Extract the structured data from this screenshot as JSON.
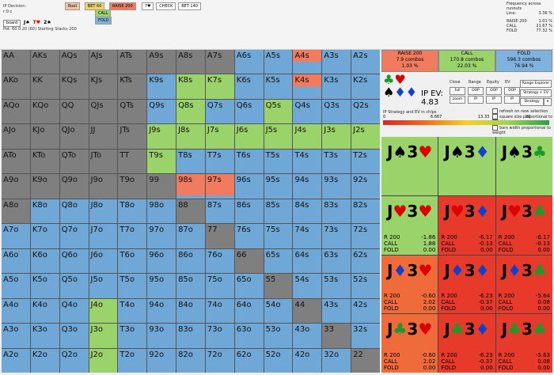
{
  "header": {
    "ip_decision_label": "IP Decision:",
    "ip_decision_value": "r:0:c",
    "board_label": "board",
    "board_cards": [
      {
        "rank": "J",
        "suit": "♠",
        "color": "#000"
      },
      {
        "rank": "T",
        "suit": "♥",
        "color": "#d00"
      },
      {
        "rank": "2",
        "suit": "♠",
        "color": "#000"
      }
    ],
    "pot_text": "Pot: 60 0.20 (60) Starting Stacks 200",
    "actions": [
      {
        "label": "Root",
        "color": "#f2c6a0"
      },
      {
        "label": "BET 60",
        "color": "#f1d36b"
      },
      {
        "label": "RAISE 200",
        "color": "#f07b5e"
      },
      {
        "label": "7♥",
        "color": "#ffffff"
      },
      {
        "label": "CHECK",
        "color": "#ffffff"
      },
      {
        "label": "BET 140",
        "color": "#ffffff"
      }
    ],
    "sub_actions": [
      {
        "label": "CALL",
        "color": "#9ad36a"
      },
      {
        "label": "FOLD",
        "color": "#7fb3de"
      }
    ]
  },
  "frequency": {
    "title": "Frequency across runouts",
    "line_label": "Line:",
    "line_value": "3.36 %",
    "rows": [
      {
        "label": "RAISE 200",
        "value": "1.01 %"
      },
      {
        "label": "CALL",
        "value": "21.67 %"
      },
      {
        "label": "FOLD",
        "value": "77.32 %"
      }
    ]
  },
  "ranks": [
    "A",
    "K",
    "Q",
    "J",
    "T",
    "9",
    "8",
    "7",
    "6",
    "5",
    "4",
    "3",
    "2"
  ],
  "right": {
    "action_boxes": [
      {
        "label": "RAISE 200",
        "combos": "7.9 combos",
        "pct": "1.03 %",
        "color": "#f07b5e"
      },
      {
        "label": "CALL",
        "combos": "170.8 combos",
        "pct": "22.03 %",
        "color": "#9ad36a"
      },
      {
        "label": "FOLD",
        "combos": "596.3 combos",
        "pct": "76.94 %",
        "color": "#7fb3de"
      }
    ],
    "ev_label": "IP EV:",
    "ev_value": "4.83",
    "close_label": "Close",
    "range_label": "Range",
    "equity_label": "Equity",
    "ev_short": "EV",
    "range_explorer": "Range Explorer",
    "buttons_row1": [
      "full",
      "OOP",
      "OOP",
      "OOP"
    ],
    "buttons_row2": [
      "zoom",
      "IP",
      "IP",
      "IP"
    ],
    "strategy_ev": "Strategy + EV",
    "strategy": "Strategy",
    "scale_title": "IP Strategy and EV in chips",
    "scale_ticks": [
      "0",
      "6.667",
      "13.33",
      "20"
    ],
    "checkboxes": [
      "refresh on new selection",
      "square size proportional to weight",
      "normalize squares",
      "bars width proportional to weight"
    ],
    "combos": [
      {
        "r1": "J",
        "s1": "♠",
        "c1": "#000",
        "r2": "3",
        "s2": "♥",
        "c2": "#d00",
        "bg": "#9ad36a",
        "stats": null
      },
      {
        "r1": "J",
        "s1": "♠",
        "c1": "#000",
        "r2": "3",
        "s2": "♦",
        "c2": "#1040d0",
        "bg": "#9ad36a",
        "stats": null
      },
      {
        "r1": "J",
        "s1": "♠",
        "c1": "#000",
        "r2": "3",
        "s2": "♣",
        "c2": "#1a9a2a",
        "bg": "#9ad36a",
        "stats": null
      },
      {
        "r1": "J",
        "s1": "♥",
        "c1": "#d00",
        "r2": "3",
        "s2": "♥",
        "c2": "#d00",
        "bg": "#9ad36a",
        "stats": [
          [
            "R 200",
            "-1.86"
          ],
          [
            "CALL",
            "1.88"
          ],
          [
            "FOLD",
            "0.00"
          ]
        ]
      },
      {
        "r1": "J",
        "s1": "♥",
        "c1": "#d00",
        "r2": "3",
        "s2": "♦",
        "c2": "#1040d0",
        "bg": "#e83a2a",
        "stats": [
          [
            "R 200",
            "-6.17"
          ],
          [
            "CALL",
            "-0.13"
          ],
          [
            "FOLD",
            "0.00"
          ]
        ]
      },
      {
        "r1": "J",
        "s1": "♥",
        "c1": "#d00",
        "r2": "3",
        "s2": "♣",
        "c2": "#1a9a2a",
        "bg": "#e83a2a",
        "stats": [
          [
            "R 200",
            "-6.17"
          ],
          [
            "CALL",
            "-0.13"
          ],
          [
            "FOLD",
            "0.00"
          ]
        ]
      },
      {
        "r1": "J",
        "s1": "♦",
        "c1": "#1040d0",
        "r2": "3",
        "s2": "♥",
        "c2": "#d00",
        "bg": "#f06b3a",
        "stats": [
          [
            "R 200",
            "-0.60"
          ],
          [
            "CALL",
            "2.02"
          ],
          [
            "FOLD",
            "0.00"
          ]
        ]
      },
      {
        "r1": "J",
        "s1": "♦",
        "c1": "#1040d0",
        "r2": "3",
        "s2": "♦",
        "c2": "#1040d0",
        "bg": "#e83a2a",
        "stats": [
          [
            "R 200",
            "-6.23"
          ],
          [
            "CALL",
            "-0.37"
          ],
          [
            "FOLD",
            "0.00"
          ]
        ]
      },
      {
        "r1": "J",
        "s1": "♦",
        "c1": "#1040d0",
        "r2": "3",
        "s2": "♣",
        "c2": "#1a9a2a",
        "bg": "#e83a2a",
        "stats": [
          [
            "R 200",
            "-5.64"
          ],
          [
            "CALL",
            "0.08"
          ],
          [
            "FOLD",
            "0.00"
          ]
        ]
      }
    ],
    "combos_bottom": [
      {
        "r1": "J",
        "s1": "♣",
        "c1": "#1a9a2a",
        "r2": "3",
        "s2": "♥",
        "c2": "#d00",
        "bg": "#f06b3a",
        "stats": [
          [
            "R 200",
            "-0.60"
          ],
          [
            "CALL",
            "2.02"
          ],
          [
            "FOLD",
            "0.00"
          ]
        ]
      },
      {
        "r1": "J",
        "s1": "♣",
        "c1": "#1a9a2a",
        "r2": "3",
        "s2": "♦",
        "c2": "#1040d0",
        "bg": "#e83a2a",
        "stats": [
          [
            "R 200",
            "-6.23"
          ],
          [
            "CALL",
            "-0.37"
          ],
          [
            "FOLD",
            "0.00"
          ]
        ]
      },
      {
        "r1": "J",
        "s1": "♣",
        "c1": "#1a9a2a",
        "r2": "3",
        "s2": "♣",
        "c2": "#1a9a2a",
        "bg": "#e83a2a",
        "stats": [
          [
            "R 200",
            "-5.63"
          ],
          [
            "CALL",
            "0.08"
          ],
          [
            "FOLD",
            "0.00"
          ]
        ]
      }
    ]
  },
  "colors": {
    "raise": "#f07b5e",
    "call": "#9ad36a",
    "fold": "#6fa8d6",
    "gray": "#7f7f7f"
  },
  "cells": {
    "AA": "gray",
    "AKs": "gray",
    "AQs": "gray",
    "AJs": "gray",
    "ATs": "gray",
    "A9s": "gray",
    "A8s": "gray",
    "A7s": "gray",
    "A6s": "fold",
    "A5s": "fold",
    "A4s": "mix",
    "A3s": "fold",
    "A2s": "fold",
    "AKo": "gray",
    "KK": "gray",
    "KQs": "gray",
    "KJs": "gray",
    "KTs": "gray",
    "K9s": "fold",
    "K8s": "call",
    "K7s": "call",
    "K6s": "fold",
    "K5s": "fold",
    "K4s": "mix",
    "K3s": "fold",
    "K2s": "fold",
    "AQo": "gray",
    "KQo": "gray",
    "QQ": "gray",
    "QJs": "gray",
    "QTs": "gray",
    "Q9s": "fold",
    "Q8s": "call",
    "Q7s": "fold",
    "Q6s": "fold",
    "Q5s": "call",
    "Q4s": "fold",
    "Q3s": "fold",
    "Q2s": "fold",
    "AJo": "gray",
    "KJo": "gray",
    "QJo": "gray",
    "JJ": "gray",
    "JTs": "gray",
    "J9s": "call",
    "J8s": "call",
    "J7s": "call",
    "J6s": "call",
    "J5s": "call",
    "J4s": "call",
    "J3s": "call",
    "J2s": "call",
    "ATo": "gray",
    "KTo": "gray",
    "QTo": "gray",
    "JTo": "gray",
    "TT": "gray",
    "T9s": "call",
    "T8s": "fold",
    "T7s": "fold",
    "T6s": "fold",
    "T5s": "fold",
    "T4s": "fold",
    "T3s": "fold",
    "T2s": "fold",
    "A9o": "gray",
    "K9o": "gray",
    "Q9o": "gray",
    "J9o": "gray",
    "T9o": "gray",
    "99": "gray",
    "98s": "raise",
    "97s": "raise",
    "96s": "fold",
    "95s": "fold",
    "94s": "fold",
    "93s": "fold",
    "92s": "fold",
    "A8o": "gray",
    "K8o": "fold",
    "Q8o": "fold",
    "J8o": "fold",
    "T8o": "fold",
    "98o": "fold",
    "88": "gray",
    "87s": "fold",
    "86s": "fold",
    "85s": "fold",
    "84s": "fold",
    "83s": "fold",
    "82s": "fold",
    "A7o": "fold",
    "K7o": "fold",
    "Q7o": "fold",
    "J7o": "fold",
    "T7o": "fold",
    "97o": "fold",
    "87o": "fold",
    "77": "gray",
    "76s": "fold",
    "75s": "fold",
    "74s": "fold",
    "73s": "fold",
    "72s": "fold",
    "A6o": "fold",
    "K6o": "fold",
    "Q6o": "fold",
    "J6o": "fold",
    "T6o": "fold",
    "96o": "fold",
    "86o": "fold",
    "76o": "fold",
    "66": "gray",
    "65s": "fold",
    "64s": "fold",
    "63s": "fold",
    "62s": "fold",
    "A5o": "fold",
    "K5o": "fold",
    "Q5o": "fold",
    "J5o": "fold",
    "T5o": "fold",
    "95o": "fold",
    "85o": "fold",
    "75o": "fold",
    "65o": "fold",
    "55": "gray",
    "54s": "fold",
    "53s": "fold",
    "52s": "fold",
    "A4o": "fold",
    "K4o": "fold",
    "Q4o": "fold",
    "J4o": "call",
    "T4o": "fold",
    "94o": "fold",
    "84o": "fold",
    "74o": "fold",
    "64o": "fold",
    "54o": "fold",
    "44": "gray",
    "43s": "fold",
    "42s": "fold",
    "A3o": "fold",
    "K3o": "fold",
    "Q3o": "fold",
    "J3o": "call",
    "T3o": "fold",
    "93o": "fold",
    "83o": "fold",
    "73o": "fold",
    "63o": "fold",
    "53o": "fold",
    "43o": "fold",
    "33": "gray",
    "32s": "fold",
    "A2o": "fold",
    "K2o": "fold",
    "Q2o": "fold",
    "J2o": "call",
    "T2o": "fold",
    "92o": "fold",
    "82o": "fold",
    "72o": "fold",
    "62o": "fold",
    "52o": "fold",
    "42o": "fold",
    "32o": "fold",
    "22": "gray"
  }
}
